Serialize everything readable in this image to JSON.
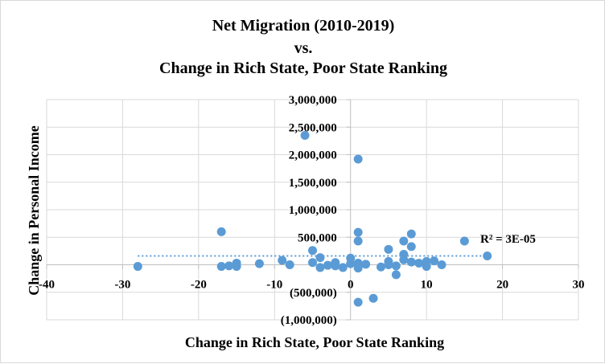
{
  "chart_data": {
    "type": "scatter",
    "title_lines": [
      "Net Migration (2010-2019)",
      "vs.",
      "Change in Rich State, Poor State Ranking"
    ],
    "xlabel": "Change in Rich State, Poor State Ranking",
    "ylabel": "Change in Personal Income",
    "xlim": [
      -40,
      30
    ],
    "ylim": [
      -1000000,
      3000000
    ],
    "x_ticks": [
      -40,
      -30,
      -20,
      -10,
      0,
      10,
      20,
      30
    ],
    "x_tick_labels": [
      "-40",
      "-30",
      "-20",
      "-10",
      "0",
      "10",
      "20",
      "30"
    ],
    "y_ticks": [
      3000000,
      2500000,
      2000000,
      1500000,
      1000000,
      500000,
      0,
      -500000,
      -1000000
    ],
    "y_tick_labels": [
      "3,000,000",
      "2,500,000",
      "2,000,000",
      "1,500,000",
      "1,000,000",
      "500,000",
      "-",
      "(500,000)",
      "(1,000,000)"
    ],
    "grid": true,
    "marker_color": "#5b9bd5",
    "trendline_color": "#5b9bd5",
    "r_squared_label": "R² = 3E-05",
    "trendline": {
      "slope": 0.0,
      "intercept": 160000
    },
    "points": [
      {
        "x": -28,
        "y": -30000
      },
      {
        "x": -17,
        "y": 600000
      },
      {
        "x": -17,
        "y": -30000
      },
      {
        "x": -16,
        "y": -20000
      },
      {
        "x": -15,
        "y": 30000
      },
      {
        "x": -15,
        "y": -30000
      },
      {
        "x": -12,
        "y": 20000
      },
      {
        "x": -9,
        "y": 80000
      },
      {
        "x": -8,
        "y": 0
      },
      {
        "x": -6,
        "y": 2350000
      },
      {
        "x": -5,
        "y": 260000
      },
      {
        "x": -5,
        "y": 40000
      },
      {
        "x": -4,
        "y": 130000
      },
      {
        "x": -4,
        "y": -50000
      },
      {
        "x": -3,
        "y": -10000
      },
      {
        "x": -2,
        "y": 40000
      },
      {
        "x": -2,
        "y": -20000
      },
      {
        "x": -1,
        "y": -50000
      },
      {
        "x": 0,
        "y": 120000
      },
      {
        "x": 0,
        "y": 20000
      },
      {
        "x": 1,
        "y": 1920000
      },
      {
        "x": 1,
        "y": 590000
      },
      {
        "x": 1,
        "y": 430000
      },
      {
        "x": 1,
        "y": 30000
      },
      {
        "x": 1,
        "y": -60000
      },
      {
        "x": 1,
        "y": -680000
      },
      {
        "x": 2,
        "y": 10000
      },
      {
        "x": 3,
        "y": -610000
      },
      {
        "x": 4,
        "y": -40000
      },
      {
        "x": 5,
        "y": 280000
      },
      {
        "x": 5,
        "y": 60000
      },
      {
        "x": 5,
        "y": 0
      },
      {
        "x": 6,
        "y": -20000
      },
      {
        "x": 6,
        "y": -180000
      },
      {
        "x": 7,
        "y": 430000
      },
      {
        "x": 7,
        "y": 190000
      },
      {
        "x": 7,
        "y": 90000
      },
      {
        "x": 8,
        "y": 560000
      },
      {
        "x": 8,
        "y": 330000
      },
      {
        "x": 8,
        "y": 50000
      },
      {
        "x": 9,
        "y": 30000
      },
      {
        "x": 10,
        "y": 60000
      },
      {
        "x": 10,
        "y": -30000
      },
      {
        "x": 11,
        "y": 70000
      },
      {
        "x": 12,
        "y": 0
      },
      {
        "x": 15,
        "y": 430000
      },
      {
        "x": 18,
        "y": 160000
      }
    ]
  }
}
